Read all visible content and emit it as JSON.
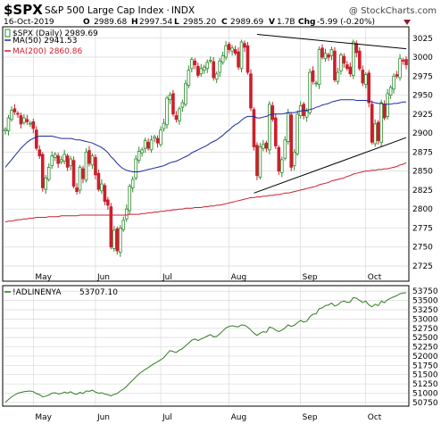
{
  "header": {
    "symbol": "$SPX",
    "name": "S&P 500 Large Cap Index",
    "exchange": "INDX",
    "watermark": "@ StockCharts.com",
    "date": "16-Oct-2019",
    "open_label": "O",
    "open": "2989.68",
    "high_label": "H",
    "high": "2997.54",
    "low_label": "L",
    "low": "2985.20",
    "close_label": "C",
    "close": "2989.69",
    "volume_label": "V",
    "volume": "1.7B",
    "change_label": "Chg",
    "change": "-5.99 (-0.20%)"
  },
  "colors": {
    "up": "#2e8b2e",
    "down": "#cc1f2d",
    "ma50": "#1a2aa0",
    "ma200": "#cc1f2d",
    "breadth": "#2e7d1f",
    "trendline": "#000000",
    "grid": "#d9d9d9"
  },
  "chart_data": [
    {
      "type": "candlestick",
      "panel": "price",
      "ylim": [
        2705,
        3040
      ],
      "y_ticks": [
        "2725",
        "2750",
        "2775",
        "2800",
        "2825",
        "2850",
        "2875",
        "2900",
        "2925",
        "2950",
        "2975",
        "3000",
        "3025"
      ],
      "x_labels": [
        "May",
        "Jun",
        "Jul",
        "Aug",
        "Sep",
        "Oct"
      ],
      "legend": [
        {
          "marker": "up-box",
          "label": "$SPX (Daily) 2989.69"
        },
        {
          "marker": "line",
          "color": "#1a2aa0",
          "label": "MA(50) 2941.53"
        },
        {
          "marker": "line",
          "color": "#cc1f2d",
          "label": "MA(200) 2860.86"
        }
      ],
      "close": [
        2905,
        2920,
        2930,
        2928,
        2925,
        2912,
        2920,
        2915,
        2913,
        2906,
        2880,
        2870,
        2828,
        2841,
        2855,
        2870,
        2872,
        2860,
        2865,
        2872,
        2855,
        2866,
        2830,
        2823,
        2855,
        2840,
        2875,
        2860,
        2870,
        2845,
        2826,
        2833,
        2810,
        2805,
        2750,
        2772,
        2745,
        2775,
        2785,
        2800,
        2830,
        2839,
        2866,
        2876,
        2878,
        2890,
        2880,
        2891,
        2895,
        2887,
        2904,
        2913,
        2946,
        2950,
        2925,
        2918,
        2932,
        2940,
        2965,
        2983,
        2997,
        2990,
        2976,
        2985,
        2987,
        2993,
        2996,
        2973,
        2978,
        2995,
        3002,
        3015,
        3010,
        3012,
        3005,
        2987,
        3020,
        3013,
        2980,
        2933,
        2882,
        2844,
        2882,
        2885,
        2880,
        2938,
        2918,
        2883,
        2850,
        2865,
        2891,
        2926,
        2855,
        2875,
        2925,
        2936,
        2923,
        2929,
        2980,
        2968,
        2966,
        3010,
        3000,
        3005,
        3000,
        3010,
        2970,
        2980,
        3003,
        2992,
        2985,
        2978,
        3020,
        3006,
        2985,
        2966,
        2977,
        2940,
        2888,
        2912,
        2890,
        2940,
        2920,
        2952,
        2960,
        2975,
        2975,
        2998,
        2995,
        2990
      ],
      "ma50": [
        2855,
        2860,
        2865,
        2870,
        2875,
        2880,
        2884,
        2888,
        2891,
        2893,
        2895,
        2896,
        2896,
        2896,
        2896,
        2896,
        2895,
        2894,
        2893,
        2893,
        2893,
        2893,
        2892,
        2891,
        2891,
        2890,
        2889,
        2888,
        2887,
        2885,
        2883,
        2881,
        2878,
        2874,
        2869,
        2865,
        2860,
        2856,
        2853,
        2851,
        2850,
        2849,
        2849,
        2849,
        2850,
        2851,
        2852,
        2853,
        2854,
        2855,
        2856,
        2857,
        2859,
        2861,
        2862,
        2863,
        2865,
        2867,
        2869,
        2871,
        2874,
        2876,
        2878,
        2880,
        2882,
        2884,
        2887,
        2889,
        2891,
        2894,
        2897,
        2901,
        2904,
        2908,
        2911,
        2913,
        2917,
        2920,
        2922,
        2922,
        2922,
        2920,
        2920,
        2921,
        2922,
        2924,
        2925,
        2925,
        2925,
        2925,
        2926,
        2927,
        2927,
        2927,
        2928,
        2929,
        2930,
        2930,
        2931,
        2932,
        2934,
        2935,
        2937,
        2938,
        2939,
        2941,
        2942,
        2943,
        2944,
        2944,
        2944,
        2944,
        2944,
        2943,
        2943,
        2943,
        2943,
        2942,
        2941,
        2940,
        2939,
        2939,
        2938,
        2938,
        2938,
        2939,
        2939,
        2940,
        2941,
        2941
      ],
      "ma200": [
        2783,
        2784,
        2784,
        2785,
        2786,
        2786,
        2787,
        2787,
        2788,
        2788,
        2789,
        2789,
        2789,
        2789,
        2790,
        2790,
        2790,
        2790,
        2791,
        2791,
        2791,
        2791,
        2791,
        2791,
        2792,
        2792,
        2792,
        2792,
        2792,
        2792,
        2792,
        2792,
        2792,
        2792,
        2792,
        2792,
        2792,
        2792,
        2792,
        2792,
        2793,
        2793,
        2793,
        2793,
        2794,
        2794,
        2795,
        2795,
        2796,
        2796,
        2797,
        2797,
        2798,
        2798,
        2799,
        2799,
        2800,
        2800,
        2801,
        2801,
        2801,
        2802,
        2802,
        2802,
        2803,
        2803,
        2804,
        2804,
        2805,
        2805,
        2806,
        2807,
        2808,
        2809,
        2810,
        2811,
        2812,
        2813,
        2814,
        2815,
        2815,
        2816,
        2816,
        2817,
        2817,
        2818,
        2818,
        2819,
        2819,
        2820,
        2821,
        2821,
        2822,
        2823,
        2824,
        2825,
        2826,
        2827,
        2828,
        2829,
        2830,
        2832,
        2833,
        2834,
        2835,
        2837,
        2838,
        2839,
        2840,
        2841,
        2843,
        2844,
        2846,
        2847,
        2848,
        2849,
        2850,
        2850,
        2851,
        2851,
        2852,
        2852,
        2853,
        2853,
        2854,
        2855,
        2856,
        2858,
        2859,
        2861
      ],
      "trendlines": [
        {
          "from": [
            81,
            3030
          ],
          "to": [
            129,
            3011
          ]
        },
        {
          "from": [
            80,
            2821
          ],
          "to": [
            129,
            2894
          ]
        }
      ]
    },
    {
      "type": "line",
      "panel": "indicator",
      "series_name": "!ADLINENYA",
      "last_value": "53707.10",
      "ylim": [
        50650,
        53900
      ],
      "y_ticks": [
        "50750",
        "51000",
        "51250",
        "51500",
        "51750",
        "52000",
        "52250",
        "52500",
        "52750",
        "53000",
        "53250",
        "53500",
        "53750"
      ],
      "x_labels": [
        "May",
        "Jun",
        "Jul",
        "Aug",
        "Sep",
        "Oct"
      ],
      "values": [
        50750,
        50830,
        50900,
        50950,
        51000,
        51020,
        51040,
        51050,
        51060,
        51040,
        50990,
        50960,
        50900,
        50920,
        50950,
        51000,
        51010,
        50980,
        50990,
        51030,
        51000,
        51040,
        50990,
        50970,
        51020,
        50990,
        51060,
        51050,
        51080,
        51030,
        51000,
        51010,
        50980,
        50960,
        50930,
        50970,
        50990,
        51060,
        51110,
        51180,
        51270,
        51350,
        51440,
        51520,
        51580,
        51640,
        51690,
        51750,
        51800,
        51850,
        51900,
        51960,
        52060,
        52150,
        52120,
        52100,
        52160,
        52200,
        52280,
        52350,
        52430,
        52460,
        52420,
        52460,
        52500,
        52540,
        52580,
        52520,
        52530,
        52600,
        52680,
        52760,
        52800,
        52820,
        52800,
        52790,
        52840,
        52830,
        52780,
        52700,
        52620,
        52560,
        52620,
        52660,
        52640,
        52780,
        52760,
        52700,
        52660,
        52700,
        52760,
        52840,
        52800,
        52830,
        52900,
        52960,
        52920,
        52940,
        53060,
        53130,
        53140,
        53280,
        53300,
        53360,
        53380,
        53430,
        53350,
        53380,
        53460,
        53480,
        53450,
        53460,
        53580,
        53560,
        53500,
        53450,
        53480,
        53380,
        53330,
        53400,
        53360,
        53480,
        53440,
        53520,
        53560,
        53600,
        53630,
        53680,
        53700,
        53707
      ]
    }
  ]
}
